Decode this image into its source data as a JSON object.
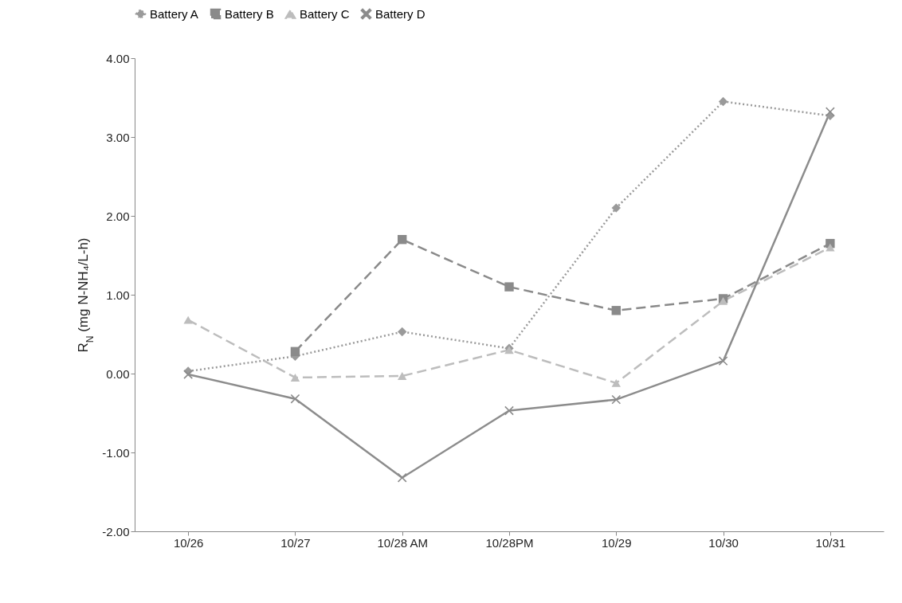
{
  "chart_data": {
    "type": "line",
    "ylabel": "R$_{N}$ (mg N-NH₄/L-h)",
    "categories": [
      "10/26",
      "10/27",
      "10/28 AM",
      "10/28PM",
      "10/29",
      "10/30",
      "10/31"
    ],
    "series": [
      {
        "name": "Battery A",
        "color": "#9a9a9a",
        "marker": "diamond",
        "line_style": "dotted",
        "values": [
          0.03,
          0.22,
          0.53,
          0.32,
          2.1,
          3.45,
          3.27
        ]
      },
      {
        "name": "Battery B",
        "color": "#8a8a8a",
        "marker": "square",
        "line_style": "dashed",
        "values": [
          null,
          0.28,
          1.7,
          1.1,
          0.8,
          0.95,
          1.65
        ]
      },
      {
        "name": "Battery C",
        "color": "#bdbdbd",
        "marker": "triangle",
        "line_style": "dashed",
        "values": [
          0.68,
          -0.05,
          -0.03,
          0.3,
          -0.12,
          0.92,
          1.6
        ]
      },
      {
        "name": "Battery D",
        "color": "#8c8c8c",
        "marker": "cross",
        "line_style": "solid",
        "values": [
          -0.01,
          -0.32,
          -1.32,
          -0.47,
          -0.33,
          0.16,
          3.32
        ]
      }
    ],
    "ylim": [
      -2,
      4
    ],
    "yticks": [
      {
        "value": -2,
        "label": "-2.00"
      },
      {
        "value": -1,
        "label": "-1.00"
      },
      {
        "value": 0,
        "label": "0.00"
      },
      {
        "value": 1,
        "label": "1.00"
      },
      {
        "value": 2,
        "label": "2.00"
      },
      {
        "value": 3,
        "label": "3.00"
      },
      {
        "value": 4,
        "label": "4.00"
      }
    ],
    "grid": false,
    "legend": "top"
  }
}
